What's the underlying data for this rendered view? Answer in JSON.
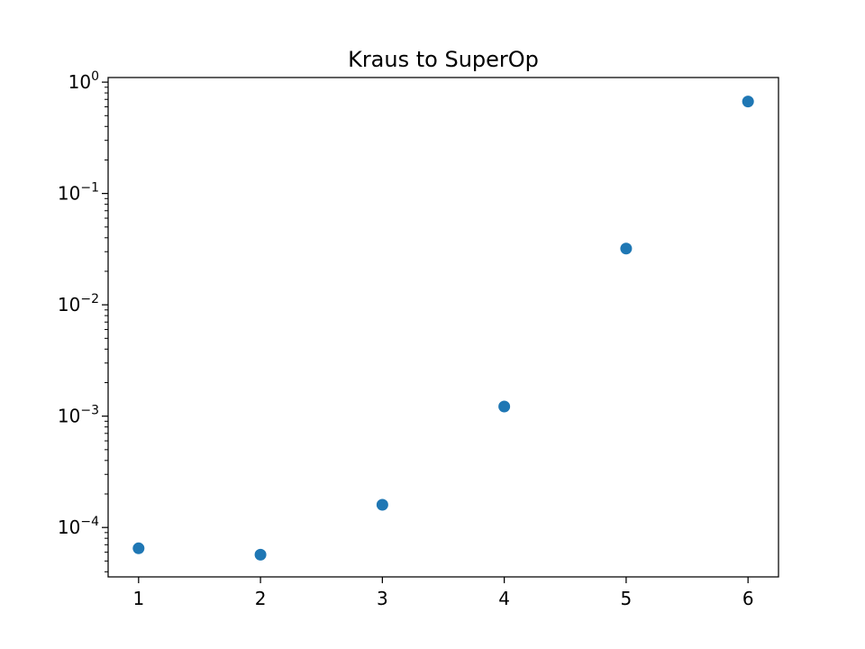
{
  "chart_data": {
    "type": "scatter",
    "title": "Kraus to SuperOp",
    "xlabel": "",
    "ylabel": "",
    "x": [
      1,
      2,
      3,
      4,
      5,
      6
    ],
    "y": [
      6.5e-05,
      5.7e-05,
      0.00016,
      0.00122,
      0.032,
      0.67
    ],
    "xlim": [
      0.75,
      6.25
    ],
    "ylim": [
      3.6e-05,
      1.1
    ],
    "yscale": "log",
    "x_ticks": [
      "1",
      "2",
      "3",
      "4",
      "5",
      "6"
    ],
    "y_ticks": [
      {
        "value": 0.0001,
        "base": "10",
        "exp": "−4"
      },
      {
        "value": 0.001,
        "base": "10",
        "exp": "−3"
      },
      {
        "value": 0.01,
        "base": "10",
        "exp": "−2"
      },
      {
        "value": 0.1,
        "base": "10",
        "exp": "−1"
      },
      {
        "value": 1,
        "base": "10",
        "exp": "0"
      }
    ],
    "grid": false,
    "marker_color": "#1f77b4"
  }
}
